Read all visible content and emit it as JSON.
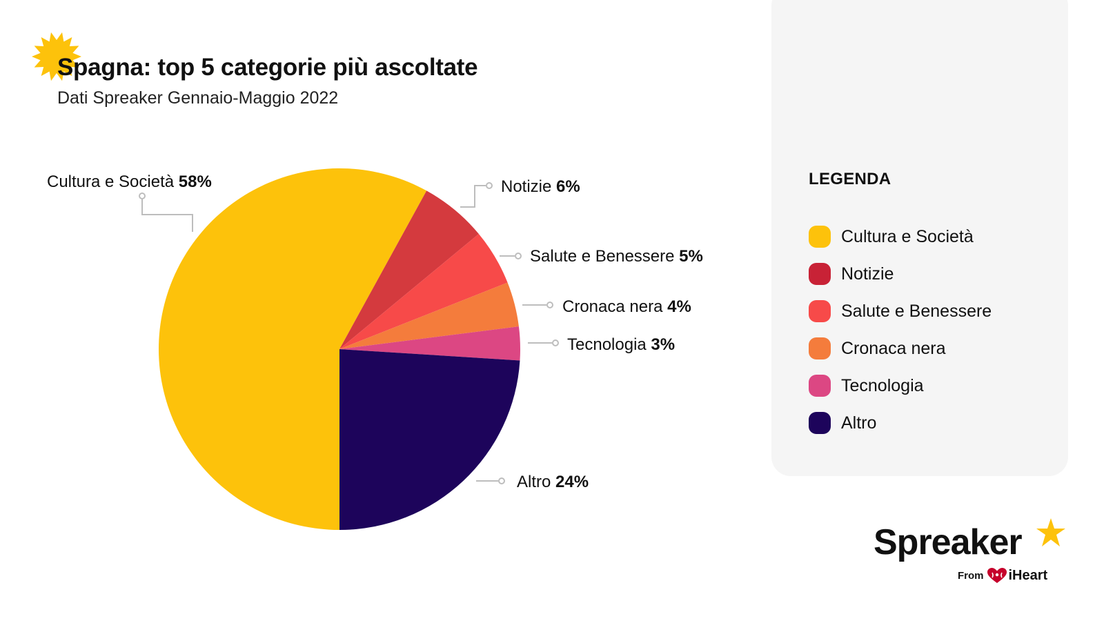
{
  "header": {
    "title": "Spagna: top 5 categorie più ascoltate",
    "subtitle": "Dati Spreaker Gennaio-Maggio 2022"
  },
  "colors": {
    "accent": "#FDC20B",
    "text": "#111111",
    "leader": "#BDBDBD",
    "panel": "#F5F5F5"
  },
  "chart_data": {
    "type": "pie",
    "slices": [
      {
        "label": "Cultura e Società",
        "value": 58,
        "display": "58%",
        "color": "#FDC20B"
      },
      {
        "label": "Notizie",
        "value": 6,
        "display": "6%",
        "color": "#D43A3E"
      },
      {
        "label": "Salute e Benessere",
        "value": 5,
        "display": "5%",
        "color": "#F74A49"
      },
      {
        "label": "Cronaca nera",
        "value": 4,
        "display": "4%",
        "color": "#F47C3C"
      },
      {
        "label": "Tecnologia",
        "value": 3,
        "display": "3%",
        "color": "#DC4783"
      },
      {
        "label": "Altro",
        "value": 24,
        "display": "24%",
        "color": "#1D045B"
      }
    ],
    "legend": {
      "title": "LEGENDA",
      "placement": "right",
      "items": [
        {
          "label": "Cultura e Società",
          "color": "#FDC20B"
        },
        {
          "label": "Notizie",
          "color": "#C82236"
        },
        {
          "label": "Salute e Benessere",
          "color": "#F74A49"
        },
        {
          "label": "Cronaca nera",
          "color": "#F47C3C"
        },
        {
          "label": "Tecnologia",
          "color": "#DC4783"
        },
        {
          "label": "Altro",
          "color": "#1D045B"
        }
      ]
    }
  },
  "logo": {
    "brand": "Spreaker",
    "from": "From",
    "partner": "iHeart",
    "star_icon": "star-icon",
    "heart_icon": "iheart-heart-icon"
  }
}
